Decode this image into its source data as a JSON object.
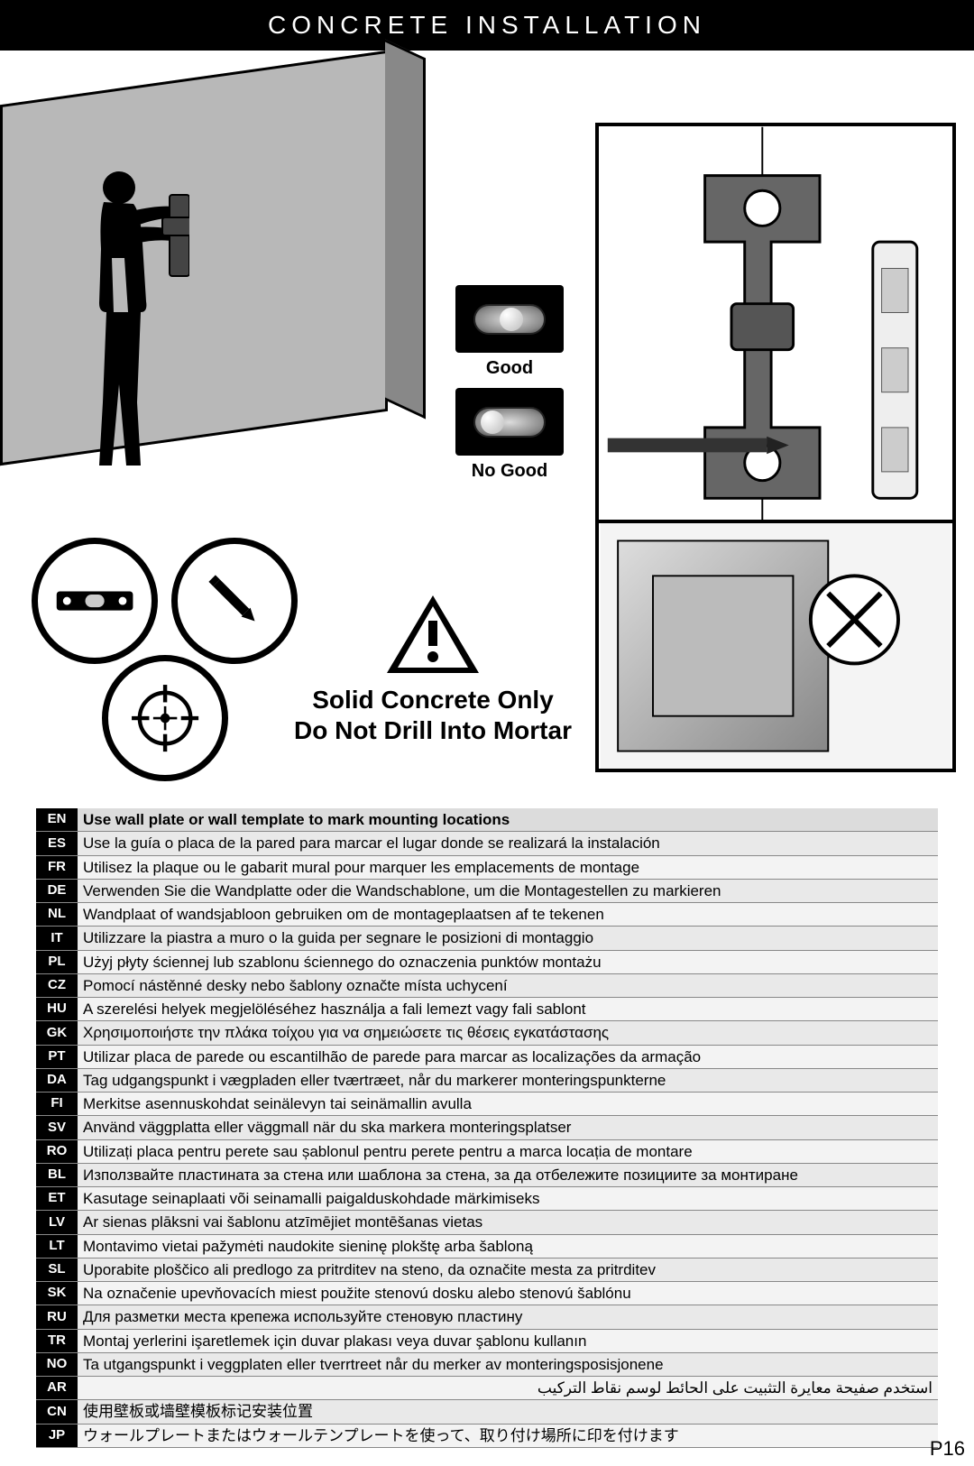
{
  "header": {
    "title": "CONCRETE INSTALLATION"
  },
  "bubble": {
    "good_label": "Good",
    "bad_label": "No Good"
  },
  "warning": {
    "line1": "Solid Concrete Only",
    "line2": "Do Not Drill Into Mortar"
  },
  "page_number": "P16",
  "colors": {
    "band_bg": "#000000",
    "band_fg": "#ffffff",
    "code_bg": "#000000",
    "code_fg": "#ffffff",
    "row_bg": "#f3f3f3",
    "row_alt_bg": "#e9e9e9"
  },
  "languages": [
    {
      "code": "EN",
      "text": "Use wall plate or wall template to mark mounting locations"
    },
    {
      "code": "ES",
      "text": "Use la guía o placa de la pared para marcar el lugar donde se realizará la instalación"
    },
    {
      "code": "FR",
      "text": "Utilisez la plaque ou le gabarit mural pour marquer les emplacements de montage"
    },
    {
      "code": "DE",
      "text": "Verwenden Sie die Wandplatte oder die Wandschablone, um die Montagestellen zu markieren"
    },
    {
      "code": "NL",
      "text": "Wandplaat of wandsjabloon gebruiken om de montageplaatsen af te tekenen"
    },
    {
      "code": "IT",
      "text": "Utilizzare la piastra a muro o la guida per segnare le posizioni di montaggio"
    },
    {
      "code": "PL",
      "text": "Użyj płyty ściennej lub szablonu ściennego do oznaczenia punktów montażu"
    },
    {
      "code": "CZ",
      "text": "Pomocí nástěnné desky nebo šablony označte místa uchycení"
    },
    {
      "code": "HU",
      "text": "A szerelési helyek megjelöléséhez használja a fali lemezt vagy fali sablont"
    },
    {
      "code": "GK",
      "text": "Χρησιμοποιήστε την πλάκα τοίχου για να σημειώσετε τις θέσεις εγκατάστασης"
    },
    {
      "code": "PT",
      "text": "Utilizar placa de parede ou escantilhão de parede para marcar as localizações da armação"
    },
    {
      "code": "DA",
      "text": "Tag udgangspunkt i vægpladen eller tværtræet, når du markerer monteringspunkterne"
    },
    {
      "code": "FI",
      "text": "Merkitse asennuskohdat seinälevyn tai seinämallin avulla"
    },
    {
      "code": "SV",
      "text": "Använd väggplatta eller väggmall när du ska markera monteringsplatser"
    },
    {
      "code": "RO",
      "text": "Utilizați placa pentru perete sau șablonul pentru perete pentru a marca locația de montare"
    },
    {
      "code": "BL",
      "text": "Използвайте пластината за стена или шаблона за стена, за да отбележите позициите за монтиране"
    },
    {
      "code": "ET",
      "text": "Kasutage seinaplaati või seinamalli paigalduskohdade märkimiseks"
    },
    {
      "code": "LV",
      "text": "Ar sienas plāksni vai šablonu atzīmējiet montēšanas vietas"
    },
    {
      "code": "LT",
      "text": "Montavimo vietai pažymėti naudokite sieninę plokštę arba šabloną"
    },
    {
      "code": "SL",
      "text": "Uporabite ploščico ali predlogo za pritrditev na steno, da označite mesta za pritrditev"
    },
    {
      "code": "SK",
      "text": "Na označenie upevňovacích miest použite stenovú dosku alebo stenovú šablónu"
    },
    {
      "code": "RU",
      "text": "Для разметки места крепежа используйте стеновую пластину"
    },
    {
      "code": "TR",
      "text": "Montaj yerlerini işaretlemek için duvar plakası veya duvar şablonu kullanın"
    },
    {
      "code": "NO",
      "text": "Ta utgangspunkt i veggplaten eller tverrtreet når du merker av monteringsposisjonene"
    },
    {
      "code": "AR",
      "text": "استخدم صفيحة معايرة التثبيت على الحائط لوسم نقاط التركيب",
      "rtl": true
    },
    {
      "code": "CN",
      "text": "使用壁板或墙壁模板标记安装位置"
    },
    {
      "code": "JP",
      "text": "ウォールプレートまたはウォールテンプレートを使って、取り付け場所に印を付けます"
    }
  ]
}
